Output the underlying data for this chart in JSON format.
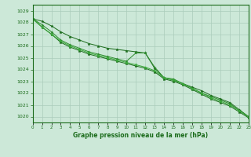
{
  "title": "Graphe pression niveau de la mer (hPa)",
  "xlabel_hours": [
    0,
    1,
    2,
    3,
    4,
    5,
    6,
    7,
    8,
    9,
    10,
    11,
    12,
    13,
    14,
    15,
    16,
    17,
    18,
    19,
    20,
    21,
    22,
    23
  ],
  "series": [
    [
      1028.3,
      1028.1,
      1027.7,
      1027.2,
      1026.8,
      1026.5,
      1026.2,
      1026.0,
      1025.8,
      1025.7,
      1025.6,
      1025.5,
      1025.4,
      1024.1,
      1023.3,
      1023.1,
      1022.8,
      1022.5,
      1022.2,
      1021.8,
      1021.5,
      1021.2,
      1020.6,
      1020.0
    ],
    [
      1028.3,
      1027.8,
      1027.2,
      1026.5,
      1026.1,
      1025.8,
      1025.5,
      1025.3,
      1025.1,
      1024.9,
      1024.7,
      1025.4,
      1025.4,
      1024.2,
      1023.3,
      1023.2,
      1022.8,
      1022.4,
      1022.0,
      1021.7,
      1021.4,
      1021.1,
      1020.5,
      1020.0
    ],
    [
      1028.3,
      1027.6,
      1027.0,
      1026.3,
      1025.9,
      1025.6,
      1025.3,
      1025.1,
      1024.9,
      1024.7,
      1024.5,
      1024.3,
      1024.1,
      1023.8,
      1023.2,
      1023.0,
      1022.7,
      1022.3,
      1021.9,
      1021.5,
      1021.2,
      1020.9,
      1020.4,
      1019.9
    ],
    [
      1028.3,
      1027.6,
      1027.0,
      1026.4,
      1026.0,
      1025.7,
      1025.4,
      1025.2,
      1025.0,
      1024.8,
      1024.6,
      1024.4,
      1024.2,
      1023.9,
      1023.3,
      1023.1,
      1022.8,
      1022.4,
      1022.0,
      1021.6,
      1021.3,
      1021.0,
      1020.5,
      1020.0
    ]
  ],
  "line_colors": [
    "#1a6b1a",
    "#2d8b2d",
    "#1a6b1a",
    "#3aaa3a"
  ],
  "marker": "*",
  "bg_color": "#cce8d8",
  "grid_color": "#aaccbb",
  "axis_color": "#1a6b1a",
  "tick_label_color": "#1a6b1a",
  "title_color": "#1a6b1a",
  "ylim": [
    1019.5,
    1029.5
  ],
  "yticks": [
    1020,
    1021,
    1022,
    1023,
    1024,
    1025,
    1026,
    1027,
    1028,
    1029
  ],
  "figsize": [
    3.2,
    2.0
  ],
  "dpi": 100
}
